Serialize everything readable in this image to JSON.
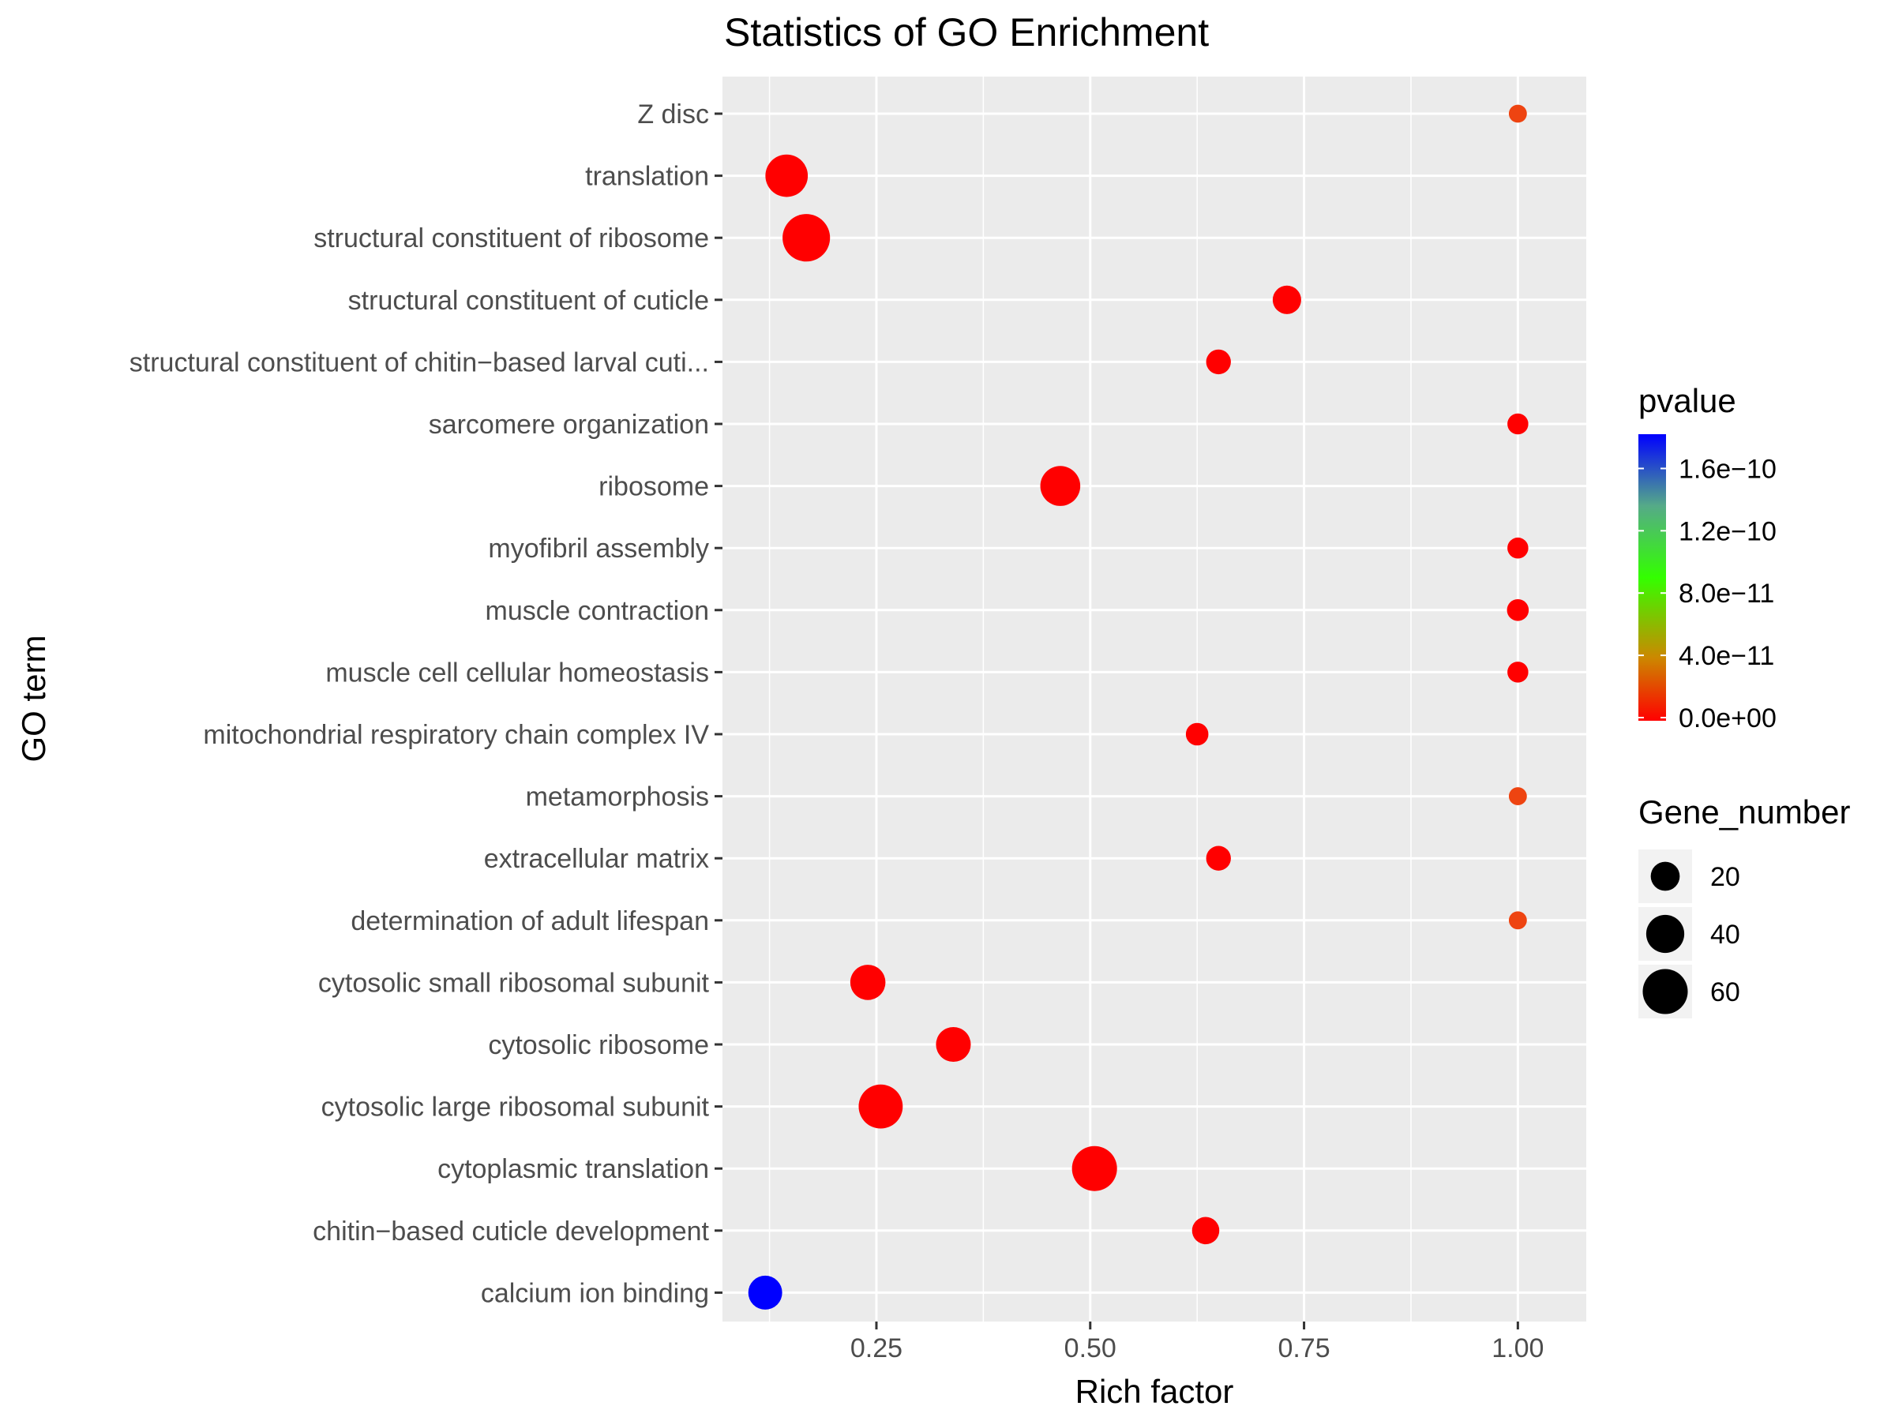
{
  "chart_data": {
    "type": "scatter",
    "title": "Statistics of GO Enrichment",
    "xlabel": "Rich factor",
    "ylabel": "GO term",
    "xlim": [
      0.07,
      1.08
    ],
    "x_ticks": [
      0.25,
      0.5,
      0.75,
      1.0
    ],
    "x_tick_labels": [
      "0.25",
      "0.50",
      "0.75",
      "1.00"
    ],
    "categories": [
      "Z disc",
      "translation",
      "structural constituent of ribosome",
      "structural constituent of cuticle",
      "structural constituent of chitin−based larval cuti...",
      "sarcomere organization",
      "ribosome",
      "myofibril assembly",
      "muscle contraction",
      "muscle cell cellular homeostasis",
      "mitochondrial respiratory chain complex IV",
      "metamorphosis",
      "extracellular matrix",
      "determination of adult lifespan",
      "cytosolic small ribosomal subunit",
      "cytosolic ribosome",
      "cytosolic large ribosomal subunit",
      "cytoplasmic translation",
      "chitin−based cuticle development",
      "calcium ion binding"
    ],
    "points": [
      {
        "term": "Z disc",
        "rich_factor": 1.0,
        "gene_number": 5,
        "color": "#ee4411"
      },
      {
        "term": "translation",
        "rich_factor": 0.145,
        "gene_number": 52,
        "color": "#ff0000"
      },
      {
        "term": "structural constituent of ribosome",
        "rich_factor": 0.168,
        "gene_number": 68,
        "color": "#ff0000"
      },
      {
        "term": "structural constituent of cuticle",
        "rich_factor": 0.73,
        "gene_number": 19,
        "color": "#ff0000"
      },
      {
        "term": "structural constituent of chitin−based larval cuti...",
        "rich_factor": 0.65,
        "gene_number": 13,
        "color": "#ff0000"
      },
      {
        "term": "sarcomere organization",
        "rich_factor": 1.0,
        "gene_number": 8,
        "color": "#ff0000"
      },
      {
        "term": "ribosome",
        "rich_factor": 0.465,
        "gene_number": 45,
        "color": "#ff0000"
      },
      {
        "term": "myofibril assembly",
        "rich_factor": 1.0,
        "gene_number": 8,
        "color": "#ff0000"
      },
      {
        "term": "muscle contraction",
        "rich_factor": 1.0,
        "gene_number": 9,
        "color": "#ff0000"
      },
      {
        "term": "muscle cell cellular homeostasis",
        "rich_factor": 1.0,
        "gene_number": 8,
        "color": "#ff0000"
      },
      {
        "term": "mitochondrial respiratory chain complex IV",
        "rich_factor": 0.625,
        "gene_number": 10,
        "color": "#ff0000"
      },
      {
        "term": "metamorphosis",
        "rich_factor": 1.0,
        "gene_number": 5,
        "color": "#ee4411"
      },
      {
        "term": "extracellular matrix",
        "rich_factor": 0.65,
        "gene_number": 13,
        "color": "#ff0000"
      },
      {
        "term": "determination of adult lifespan",
        "rich_factor": 1.0,
        "gene_number": 5,
        "color": "#ee4411"
      },
      {
        "term": "cytosolic small ribosomal subunit",
        "rich_factor": 0.24,
        "gene_number": 33,
        "color": "#ff0000"
      },
      {
        "term": "cytosolic ribosome",
        "rich_factor": 0.34,
        "gene_number": 32,
        "color": "#ff0000"
      },
      {
        "term": "cytosolic large ribosomal subunit",
        "rich_factor": 0.255,
        "gene_number": 57,
        "color": "#ff0000"
      },
      {
        "term": "cytoplasmic translation",
        "rich_factor": 0.505,
        "gene_number": 60,
        "color": "#ff0000"
      },
      {
        "term": "chitin−based cuticle development",
        "rich_factor": 0.635,
        "gene_number": 17,
        "color": "#ff0000"
      },
      {
        "term": "calcium ion binding",
        "rich_factor": 0.12,
        "gene_number": 30,
        "color": "#0000ff"
      }
    ],
    "grid": true,
    "panel_background": "#ebebeb",
    "legend_position": "right",
    "legend_pvalue": {
      "title": "pvalue",
      "range": [
        0,
        1.8e-10
      ],
      "colors": [
        "#ff0000",
        "#33ff00",
        "#0000ff"
      ],
      "ticks": [
        0,
        4e-11,
        8e-11,
        1.2e-10,
        1.6e-10
      ],
      "tick_labels": [
        "0.0e+00",
        "4.0e−11",
        "8.0e−11",
        "1.2e−10",
        "1.6e−10"
      ]
    },
    "legend_size": {
      "title": "Gene_number",
      "values": [
        20,
        40,
        60
      ],
      "labels": [
        "20",
        "40",
        "60"
      ]
    }
  }
}
